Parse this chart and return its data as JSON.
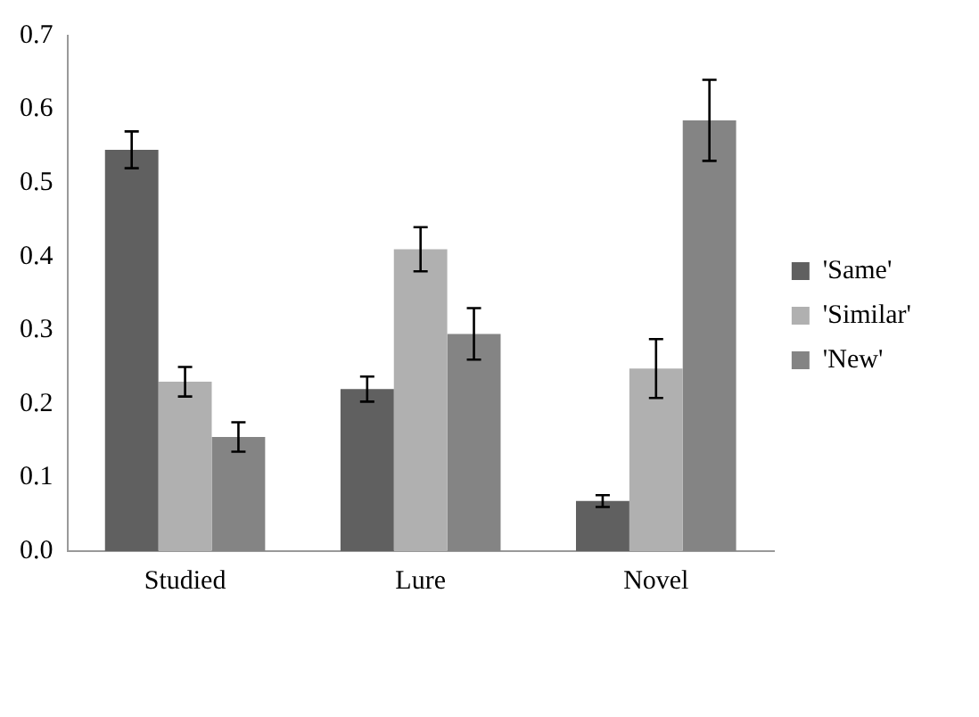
{
  "chart_data": {
    "type": "bar",
    "categories": [
      "Studied",
      "Lure",
      "Novel"
    ],
    "series": [
      {
        "name": "'Same'",
        "color": "#606060",
        "values": [
          0.545,
          0.22,
          0.068
        ],
        "errors": [
          0.025,
          0.017,
          0.008
        ]
      },
      {
        "name": "'Similar'",
        "color": "#b0b0b0",
        "values": [
          0.23,
          0.41,
          0.248
        ],
        "errors": [
          0.02,
          0.03,
          0.04
        ]
      },
      {
        "name": "'New'",
        "color": "#848484",
        "values": [
          0.155,
          0.295,
          0.585
        ],
        "errors": [
          0.02,
          0.035,
          0.055
        ]
      }
    ],
    "ylim": [
      0,
      0.7
    ],
    "yticks": [
      {
        "value": 0,
        "label": "0.0"
      },
      0.1,
      0.2,
      0.3,
      0.4,
      0.5,
      0.6,
      0.7
    ],
    "grid": false,
    "legend": "right"
  }
}
